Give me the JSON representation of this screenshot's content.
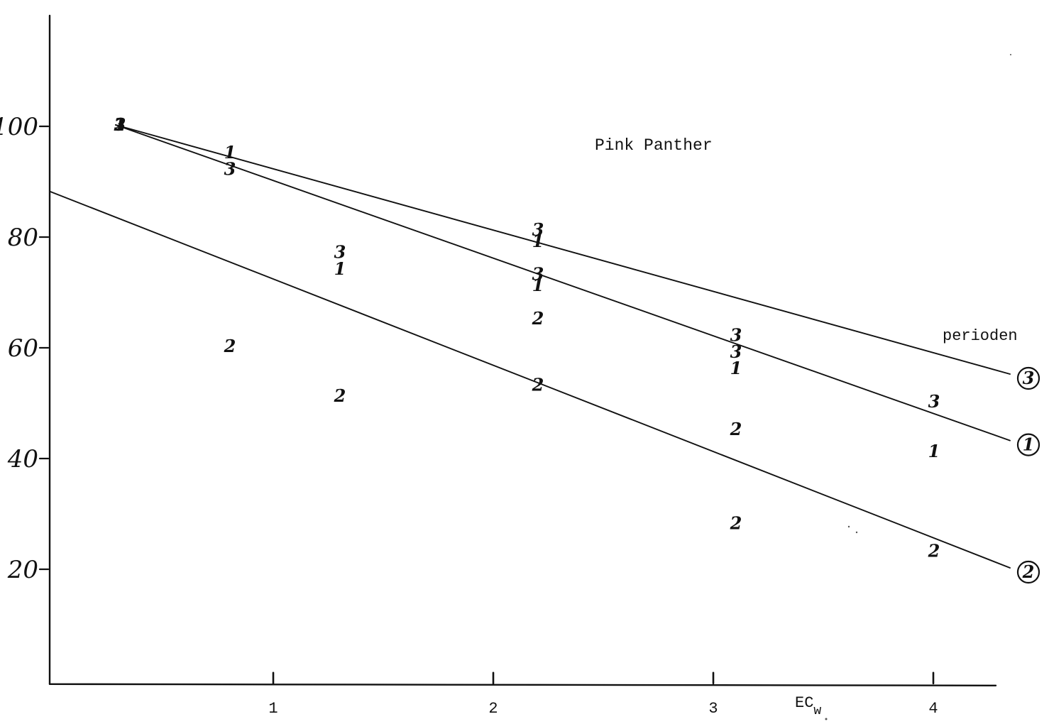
{
  "chart_data": {
    "type": "scatter",
    "title": "Pink Panther",
    "xlabel": "EC",
    "xlabel_subscript": "w",
    "ylabel": "",
    "xlim": [
      0,
      4.3
    ],
    "ylim": [
      -1,
      120
    ],
    "x_ticks": [
      {
        "value": 1,
        "label": "1"
      },
      {
        "value": 2,
        "label": "2"
      },
      {
        "value": 3,
        "label": "3"
      },
      {
        "value": 4,
        "label": "4"
      }
    ],
    "y_ticks": [
      {
        "value": 20,
        "label": "20"
      },
      {
        "value": 40,
        "label": "40"
      },
      {
        "value": 60,
        "label": "60"
      },
      {
        "value": 80,
        "label": "80"
      },
      {
        "value": 100,
        "label": "100"
      }
    ],
    "legend_title": "perioden",
    "grid": false,
    "series": [
      {
        "name": "1",
        "points": [
          {
            "x": 0.3,
            "y": 100
          },
          {
            "x": 0.8,
            "y": 95
          },
          {
            "x": 1.3,
            "y": 74
          },
          {
            "x": 2.2,
            "y": 79
          },
          {
            "x": 2.2,
            "y": 71
          },
          {
            "x": 3.1,
            "y": 56
          },
          {
            "x": 4.0,
            "y": 41
          }
        ]
      },
      {
        "name": "2",
        "points": [
          {
            "x": 0.3,
            "y": 100
          },
          {
            "x": 0.8,
            "y": 60
          },
          {
            "x": 1.3,
            "y": 51
          },
          {
            "x": 2.2,
            "y": 65
          },
          {
            "x": 2.2,
            "y": 53
          },
          {
            "x": 3.1,
            "y": 45
          },
          {
            "x": 3.1,
            "y": 28
          },
          {
            "x": 4.0,
            "y": 23
          }
        ]
      },
      {
        "name": "3",
        "points": [
          {
            "x": 0.3,
            "y": 100
          },
          {
            "x": 0.8,
            "y": 92
          },
          {
            "x": 1.3,
            "y": 77
          },
          {
            "x": 2.2,
            "y": 81
          },
          {
            "x": 2.2,
            "y": 73
          },
          {
            "x": 3.1,
            "y": 62
          },
          {
            "x": 3.1,
            "y": 59
          },
          {
            "x": 4.0,
            "y": 50
          }
        ]
      }
    ],
    "trend_lines": [
      {
        "series": "3",
        "from": [
          0.3,
          100
        ],
        "to": [
          4.3,
          55
        ]
      },
      {
        "series": "1",
        "from": [
          0.3,
          100
        ],
        "to": [
          4.3,
          43
        ]
      },
      {
        "series": "2",
        "from": [
          0.0,
          88
        ],
        "to": [
          4.3,
          20
        ]
      }
    ]
  }
}
